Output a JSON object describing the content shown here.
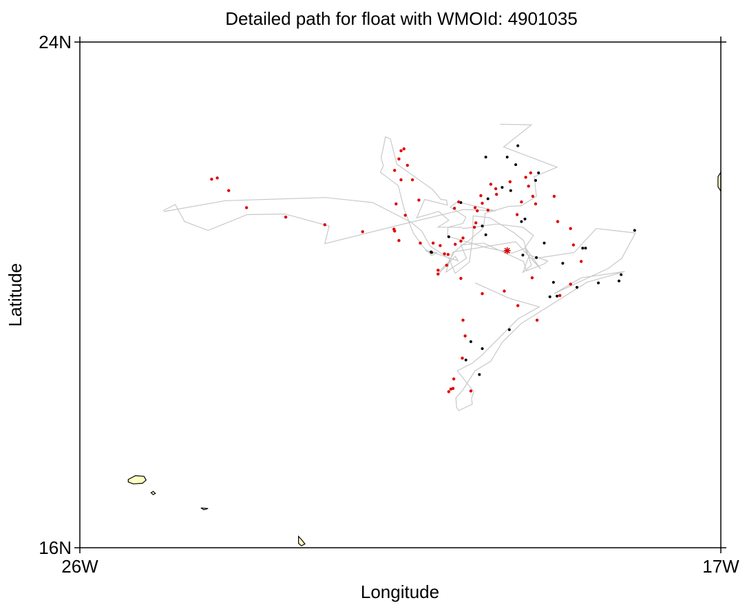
{
  "chart_data": {
    "type": "scatter",
    "title": "Detailed path for float with WMOId: 4901035",
    "xlabel": "Longitude",
    "ylabel": "Latitude",
    "xlim": [
      -26,
      -17
    ],
    "ylim": [
      16,
      24
    ],
    "x_ticks": [
      {
        "value": -26,
        "label": "26W"
      },
      {
        "value": -17,
        "label": "17W"
      }
    ],
    "y_ticks": [
      {
        "value": 16,
        "label": "16N"
      },
      {
        "value": 24,
        "label": "24N"
      }
    ],
    "grid": false,
    "colors": {
      "path": "#c8c8c8",
      "profile_black": "#000000",
      "profile_red": "#e00000",
      "start_marker": "#d40000",
      "land": "#ffffc0"
    },
    "start": {
      "lon": -20.0,
      "lat": 20.7
    },
    "track": [
      [
        -20.1,
        22.7
      ],
      [
        -19.66,
        22.69
      ],
      [
        -20.05,
        22.34
      ],
      [
        -19.3,
        22.02
      ],
      [
        -19.62,
        21.87
      ],
      [
        -19.59,
        21.56
      ],
      [
        -19.8,
        21.41
      ],
      [
        -19.98,
        21.4
      ],
      [
        -20.31,
        21.29
      ],
      [
        -20.33,
        21.07
      ],
      [
        -20.39,
        21.0
      ],
      [
        -20.57,
        20.83
      ],
      [
        -20.63,
        20.79
      ],
      [
        -20.74,
        20.68
      ],
      [
        -20.83,
        20.51
      ],
      [
        -20.94,
        20.39
      ],
      [
        -20.95,
        20.35
      ],
      [
        -20.73,
        20.61
      ],
      [
        -20.69,
        20.54
      ],
      [
        -21.15,
        20.71
      ],
      [
        -21.13,
        20.69
      ],
      [
        -20.99,
        20.67
      ],
      [
        -21.06,
        20.62
      ],
      [
        -21.18,
        20.76
      ],
      [
        -21.32,
        20.98
      ],
      [
        -21.45,
        21.37
      ],
      [
        -21.53,
        21.73
      ],
      [
        -21.78,
        21.94
      ],
      [
        -21.74,
        22.04
      ],
      [
        -21.77,
        22.17
      ],
      [
        -21.73,
        22.38
      ],
      [
        -21.71,
        22.5
      ],
      [
        -21.64,
        22.47
      ],
      [
        -21.55,
        22.07
      ],
      [
        -21.05,
        21.67
      ],
      [
        -20.93,
        21.51
      ],
      [
        -20.85,
        21.5
      ],
      [
        -20.84,
        21.42
      ],
      [
        -21.16,
        21.51
      ],
      [
        -21.27,
        21.22
      ],
      [
        -20.96,
        21.32
      ],
      [
        -20.82,
        21.18
      ],
      [
        -20.97,
        21.07
      ],
      [
        -20.64,
        21.07
      ],
      [
        -20.62,
        21.05
      ],
      [
        -20.15,
        21.12
      ],
      [
        -19.78,
        21.07
      ],
      [
        -19.63,
        20.94
      ],
      [
        -19.75,
        20.75
      ],
      [
        -19.72,
        20.64
      ],
      [
        -19.43,
        20.54
      ],
      [
        -19.48,
        20.49
      ],
      [
        -19.73,
        20.38
      ],
      [
        -19.77,
        20.53
      ],
      [
        -20.33,
        20.82
      ],
      [
        -20.65,
        20.79
      ],
      [
        -20.57,
        20.58
      ],
      [
        -20.86,
        20.36
      ],
      [
        -20.76,
        20.68
      ],
      [
        -19.88,
        20.84
      ],
      [
        -19.53,
        20.41
      ],
      [
        -19.74,
        20.74
      ],
      [
        -19.93,
        20.66
      ],
      [
        -20.3,
        20.75
      ],
      [
        -20.84,
        20.93
      ],
      [
        -20.83,
        21.07
      ],
      [
        -20.62,
        21.13
      ],
      [
        -20.58,
        21.23
      ],
      [
        -20.8,
        21.39
      ],
      [
        -20.7,
        21.47
      ],
      [
        -20.16,
        21.33
      ],
      [
        -20.61,
        21.35
      ],
      [
        -21.57,
        21.09
      ],
      [
        -22.56,
        20.81
      ],
      [
        -22.5,
        21.09
      ],
      [
        -23.12,
        21.28
      ],
      [
        -23.65,
        21.27
      ],
      [
        -24.2,
        21.02
      ],
      [
        -24.53,
        21.16
      ],
      [
        -24.66,
        21.43
      ],
      [
        -24.82,
        21.34
      ],
      [
        -24.81,
        21.32
      ],
      [
        -23.96,
        21.49
      ],
      [
        -22.55,
        21.54
      ],
      [
        -21.89,
        21.46
      ],
      [
        -21.35,
        21.15
      ],
      [
        -21.2,
        21.01
      ],
      [
        -21.08,
        20.77
      ],
      [
        -20.82,
        20.58
      ],
      [
        -20.73,
        20.34
      ],
      [
        -20.53,
        20.52
      ],
      [
        -20.48,
        20.96
      ],
      [
        -20.48,
        21.25
      ],
      [
        -20.24,
        21.22
      ],
      [
        -19.9,
        20.98
      ],
      [
        -19.77,
        20.86
      ],
      [
        -19.66,
        20.47
      ],
      [
        -19.78,
        20.35
      ],
      [
        -19.7,
        20.6
      ],
      [
        -19.65,
        20.57
      ],
      [
        -19.06,
        20.67
      ],
      [
        -18.75,
        21.05
      ],
      [
        -18.2,
        20.98
      ],
      [
        -18.39,
        20.58
      ],
      [
        -18.58,
        20.42
      ],
      [
        -19.34,
        20.02
      ],
      [
        -18.96,
        20.27
      ],
      [
        -18.35,
        20.37
      ],
      [
        -18.88,
        20.2
      ],
      [
        -19.8,
        19.55
      ],
      [
        -20.07,
        19.25
      ],
      [
        -20.23,
        18.95
      ],
      [
        -20.45,
        18.8
      ],
      [
        -20.62,
        18.5
      ],
      [
        -20.72,
        18.37
      ],
      [
        -20.71,
        18.22
      ],
      [
        -20.68,
        18.17
      ],
      [
        -20.49,
        18.27
      ],
      [
        -20.5,
        18.36
      ],
      [
        -20.47,
        18.47
      ],
      [
        -20.7,
        18.8
      ],
      [
        -20.49,
        18.92
      ],
      [
        -20.36,
        19.04
      ],
      [
        -19.85,
        19.62
      ],
      [
        -19.55,
        19.81
      ],
      [
        -19.98,
        19.95
      ],
      [
        -20.45,
        20.19
      ]
    ],
    "profiles_black": [
      [
        -20.3,
        22.18
      ],
      [
        -19.85,
        22.36
      ],
      [
        -20.0,
        22.18
      ],
      [
        -19.88,
        22.06
      ],
      [
        -19.56,
        21.93
      ],
      [
        -19.6,
        21.81
      ],
      [
        -19.95,
        21.65
      ],
      [
        -20.07,
        21.7
      ],
      [
        -20.27,
        21.52
      ],
      [
        -20.65,
        21.46
      ],
      [
        -20.82,
        20.92
      ],
      [
        -21.07,
        20.68
      ],
      [
        -21.06,
        20.67
      ],
      [
        -20.35,
        21.09
      ],
      [
        -20.3,
        20.95
      ],
      [
        -19.75,
        21.2
      ],
      [
        -19.8,
        21.16
      ],
      [
        -19.48,
        20.82
      ],
      [
        -19.78,
        20.63
      ],
      [
        -19.59,
        20.59
      ],
      [
        -19.22,
        20.5
      ],
      [
        -19.35,
        20.2
      ],
      [
        -18.9,
        20.74
      ],
      [
        -18.43,
        20.22
      ],
      [
        -18.94,
        20.74
      ],
      [
        -18.21,
        21.02
      ],
      [
        -18.4,
        20.32
      ],
      [
        -18.72,
        20.19
      ],
      [
        -19.02,
        20.12
      ],
      [
        -20.51,
        19.26
      ],
      [
        -19.97,
        19.45
      ],
      [
        -19.4,
        19.97
      ],
      [
        -19.3,
        19.98
      ],
      [
        -20.58,
        18.97
      ],
      [
        -20.39,
        18.74
      ],
      [
        -20.35,
        19.15
      ]
    ],
    "profiles_red": [
      [
        -24.15,
        21.83
      ],
      [
        -24.07,
        21.85
      ],
      [
        -23.91,
        21.65
      ],
      [
        -23.66,
        21.38
      ],
      [
        -23.11,
        21.23
      ],
      [
        -22.56,
        21.11
      ],
      [
        -22.03,
        21.0
      ],
      [
        -21.52,
        20.86
      ],
      [
        -21.22,
        20.82
      ],
      [
        -20.94,
        20.78
      ],
      [
        -20.88,
        20.65
      ],
      [
        -20.83,
        20.64
      ],
      [
        -20.73,
        20.8
      ],
      [
        -20.65,
        20.85
      ],
      [
        -20.85,
        20.47
      ],
      [
        -21.04,
        20.82
      ],
      [
        -20.62,
        20.9
      ],
      [
        -20.74,
        21.37
      ],
      [
        -20.68,
        21.47
      ],
      [
        -20.42,
        21.33
      ],
      [
        -20.46,
        21.07
      ],
      [
        -20.44,
        21.14
      ],
      [
        -20.23,
        21.75
      ],
      [
        -20.16,
        21.68
      ],
      [
        -20.27,
        21.34
      ],
      [
        -19.7,
        21.72
      ],
      [
        -19.64,
        21.56
      ],
      [
        -19.34,
        21.56
      ],
      [
        -20.37,
        21.57
      ],
      [
        -21.24,
        21.5
      ],
      [
        -21.33,
        21.82
      ],
      [
        -21.4,
        22.05
      ],
      [
        -21.49,
        22.28
      ],
      [
        -21.45,
        22.31
      ],
      [
        -21.52,
        22.15
      ],
      [
        -21.58,
        21.97
      ],
      [
        -21.49,
        21.82
      ],
      [
        -21.56,
        21.44
      ],
      [
        -21.43,
        21.26
      ],
      [
        -21.59,
        21.04
      ],
      [
        -21.58,
        21.01
      ],
      [
        -20.45,
        21.38
      ],
      [
        -20.35,
        21.45
      ],
      [
        -20.15,
        21.59
      ],
      [
        -19.96,
        21.79
      ],
      [
        -19.74,
        21.86
      ],
      [
        -19.67,
        21.93
      ],
      [
        -19.86,
        21.27
      ],
      [
        -19.8,
        21.47
      ],
      [
        -19.6,
        21.44
      ],
      [
        -19.29,
        21.16
      ],
      [
        -19.11,
        21.05
      ],
      [
        -19.07,
        20.79
      ],
      [
        -18.96,
        20.53
      ],
      [
        -19.65,
        20.27
      ],
      [
        -19.11,
        20.17
      ],
      [
        -19.26,
        19.99
      ],
      [
        -19.58,
        19.6
      ],
      [
        -19.85,
        19.83
      ],
      [
        -20.04,
        20.06
      ],
      [
        -20.35,
        20.02
      ],
      [
        -20.65,
        20.26
      ],
      [
        -20.62,
        19.6
      ],
      [
        -20.63,
        19.0
      ],
      [
        -20.75,
        18.67
      ],
      [
        -20.79,
        18.51
      ],
      [
        -20.76,
        18.52
      ],
      [
        -20.82,
        18.47
      ],
      [
        -20.51,
        18.48
      ],
      [
        -20.59,
        19.35
      ],
      [
        -20.97,
        20.39
      ],
      [
        -20.97,
        20.33
      ]
    ],
    "land": [
      {
        "name": "Santo Antao",
        "points": [
          [
            -25.32,
            17.08
          ],
          [
            -25.22,
            17.14
          ],
          [
            -25.1,
            17.13
          ],
          [
            -25.07,
            17.07
          ],
          [
            -25.12,
            17.02
          ],
          [
            -25.25,
            17.01
          ],
          [
            -25.32,
            17.04
          ]
        ],
        "filled": true
      },
      {
        "name": "Sao Vicente",
        "points": [
          [
            -25.0,
            16.87
          ],
          [
            -24.97,
            16.84
          ],
          [
            -24.94,
            16.86
          ],
          [
            -24.97,
            16.89
          ]
        ],
        "filled": true
      },
      {
        "name": "Santa Luzia",
        "points": [
          [
            -24.3,
            16.63
          ],
          [
            -24.2,
            16.62
          ],
          [
            -24.26,
            16.6
          ]
        ],
        "filled": false
      },
      {
        "name": "Sal",
        "points": [
          [
            -22.93,
            16.18
          ],
          [
            -22.88,
            16.12
          ],
          [
            -22.84,
            16.06
          ],
          [
            -22.89,
            16.03
          ],
          [
            -22.93,
            16.07
          ]
        ],
        "filled": true
      },
      {
        "name": "Mauritania coast",
        "points": [
          [
            -17.0,
            21.94
          ],
          [
            -17.04,
            21.87
          ],
          [
            -17.04,
            21.71
          ],
          [
            -17.0,
            21.64
          ]
        ],
        "filled": true
      }
    ]
  }
}
